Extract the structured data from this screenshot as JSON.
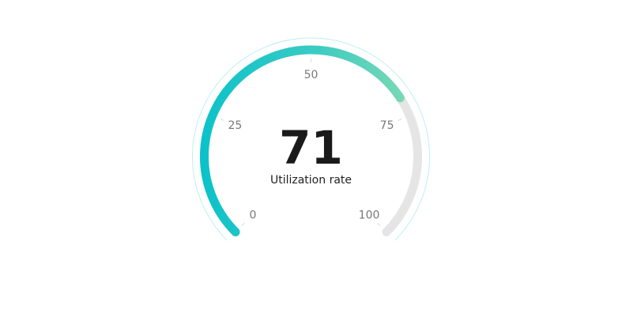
{
  "chart_data": {
    "type": "gauge",
    "value": 71,
    "min": 0,
    "max": 100,
    "label": "Utilization rate",
    "ticks": [
      {
        "value": 0,
        "label": "0"
      },
      {
        "value": 25,
        "label": "25"
      },
      {
        "value": 50,
        "label": "50"
      },
      {
        "value": 75,
        "label": "75"
      },
      {
        "value": 100,
        "label": "100"
      }
    ],
    "value_text": "71",
    "colors": {
      "progress_start": "#0bc2c9",
      "progress_mid": "#3bcbc3",
      "progress_end": "#7ad9b5",
      "track": "#e5e5e5",
      "outer_ring": "#bfeef0",
      "tick_mark": "#d9d9d9"
    }
  }
}
